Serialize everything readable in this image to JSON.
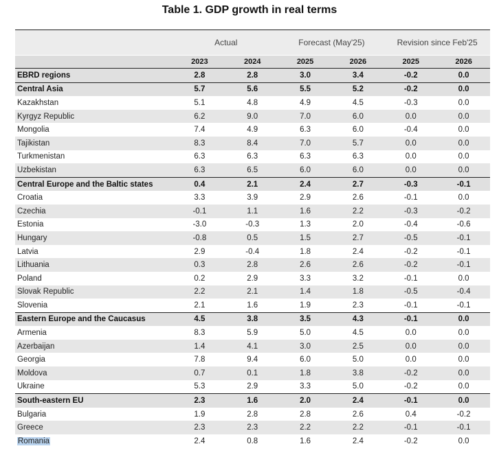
{
  "title": "Table 1. GDP growth in real terms",
  "groups": [
    "Actual",
    "Forecast (May'25)",
    "Revision since Feb'25"
  ],
  "years": [
    "2023",
    "2024",
    "2025",
    "2026",
    "2025",
    "2026"
  ],
  "rows": [
    {
      "name": "EBRD regions",
      "region": true,
      "v": [
        "2.8",
        "2.8",
        "3.0",
        "3.4",
        "-0.2",
        "0.0"
      ]
    },
    {
      "name": "Central Asia",
      "region": true,
      "v": [
        "5.7",
        "5.6",
        "5.5",
        "5.2",
        "-0.2",
        "0.0"
      ]
    },
    {
      "name": "Kazakhstan",
      "v": [
        "5.1",
        "4.8",
        "4.9",
        "4.5",
        "-0.3",
        "0.0"
      ]
    },
    {
      "name": "Kyrgyz Republic",
      "v": [
        "6.2",
        "9.0",
        "7.0",
        "6.0",
        "0.0",
        "0.0"
      ]
    },
    {
      "name": "Mongolia",
      "v": [
        "7.4",
        "4.9",
        "6.3",
        "6.0",
        "-0.4",
        "0.0"
      ]
    },
    {
      "name": "Tajikistan",
      "v": [
        "8.3",
        "8.4",
        "7.0",
        "5.7",
        "0.0",
        "0.0"
      ]
    },
    {
      "name": "Turkmenistan",
      "v": [
        "6.3",
        "6.3",
        "6.3",
        "6.3",
        "0.0",
        "0.0"
      ]
    },
    {
      "name": "Uzbekistan",
      "v": [
        "6.3",
        "6.5",
        "6.0",
        "6.0",
        "0.0",
        "0.0"
      ]
    },
    {
      "name": "Central Europe and the Baltic states",
      "region": true,
      "v": [
        "0.4",
        "2.1",
        "2.4",
        "2.7",
        "-0.3",
        "-0.1"
      ]
    },
    {
      "name": "Croatia",
      "v": [
        "3.3",
        "3.9",
        "2.9",
        "2.6",
        "-0.1",
        "0.0"
      ]
    },
    {
      "name": "Czechia",
      "v": [
        "-0.1",
        "1.1",
        "1.6",
        "2.2",
        "-0.3",
        "-0.2"
      ]
    },
    {
      "name": "Estonia",
      "v": [
        "-3.0",
        "-0.3",
        "1.3",
        "2.0",
        "-0.4",
        "-0.6"
      ]
    },
    {
      "name": "Hungary",
      "v": [
        "-0.8",
        "0.5",
        "1.5",
        "2.7",
        "-0.5",
        "-0.1"
      ]
    },
    {
      "name": "Latvia",
      "v": [
        "2.9",
        "-0.4",
        "1.8",
        "2.4",
        "-0.2",
        "-0.1"
      ]
    },
    {
      "name": "Lithuania",
      "v": [
        "0.3",
        "2.8",
        "2.6",
        "2.6",
        "-0.2",
        "-0.1"
      ]
    },
    {
      "name": "Poland",
      "v": [
        "0.2",
        "2.9",
        "3.3",
        "3.2",
        "-0.1",
        "0.0"
      ]
    },
    {
      "name": "Slovak Republic",
      "v": [
        "2.2",
        "2.1",
        "1.4",
        "1.8",
        "-0.5",
        "-0.4"
      ]
    },
    {
      "name": "Slovenia",
      "v": [
        "2.1",
        "1.6",
        "1.9",
        "2.3",
        "-0.1",
        "-0.1"
      ]
    },
    {
      "name": "Eastern Europe and the Caucasus",
      "region": true,
      "v": [
        "4.5",
        "3.8",
        "3.5",
        "4.3",
        "-0.1",
        "0.0"
      ]
    },
    {
      "name": "Armenia",
      "v": [
        "8.3",
        "5.9",
        "5.0",
        "4.5",
        "0.0",
        "0.0"
      ]
    },
    {
      "name": "Azerbaijan",
      "v": [
        "1.4",
        "4.1",
        "3.0",
        "2.5",
        "0.0",
        "0.0"
      ]
    },
    {
      "name": "Georgia",
      "v": [
        "7.8",
        "9.4",
        "6.0",
        "5.0",
        "0.0",
        "0.0"
      ]
    },
    {
      "name": "Moldova",
      "v": [
        "0.7",
        "0.1",
        "1.8",
        "3.8",
        "-0.2",
        "0.0"
      ]
    },
    {
      "name": "Ukraine",
      "v": [
        "5.3",
        "2.9",
        "3.3",
        "5.0",
        "-0.2",
        "0.0"
      ]
    },
    {
      "name": "South-eastern EU",
      "region": true,
      "v": [
        "2.3",
        "1.6",
        "2.0",
        "2.4",
        "-0.1",
        "0.0"
      ]
    },
    {
      "name": "Bulgaria",
      "v": [
        "1.9",
        "2.8",
        "2.8",
        "2.6",
        "0.4",
        "-0.2"
      ]
    },
    {
      "name": "Greece",
      "v": [
        "2.3",
        "2.3",
        "2.2",
        "2.2",
        "-0.1",
        "-0.1"
      ]
    },
    {
      "name": "Romania",
      "selected": true,
      "v": [
        "2.4",
        "0.8",
        "1.6",
        "2.4",
        "-0.2",
        "0.0"
      ]
    }
  ]
}
